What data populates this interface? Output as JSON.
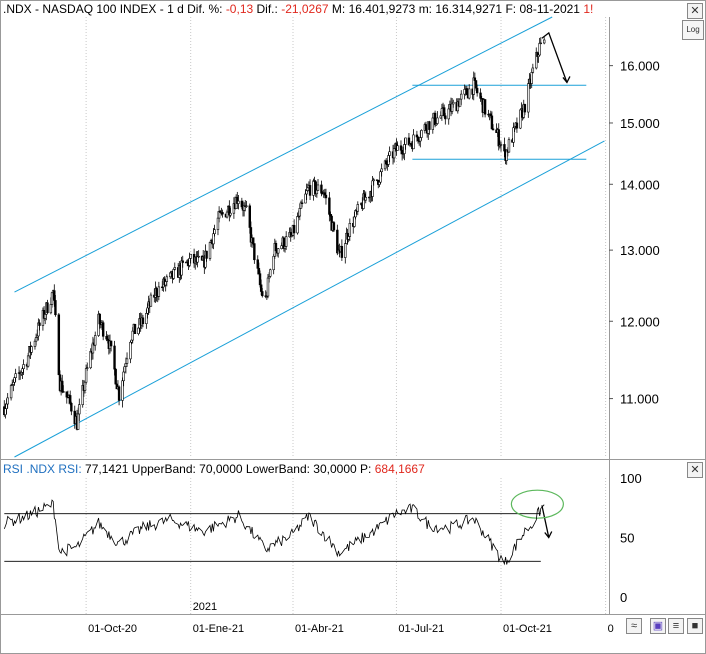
{
  "header": {
    "symbol": ".NDX",
    "sep1": "-",
    "name": "NASDAQ 100 INDEX",
    "sep2": "-",
    "period": "1 d",
    "dif_pct_label": "Dif. %:",
    "dif_pct": "-0,13",
    "dif_label": "Dif.:",
    "dif": "-21,0267",
    "m_label": "M:",
    "m": "16.401,9273",
    "mlow_label": "m:",
    "mlow": "16.314,9271",
    "f_label": "F:",
    "f": "08-11-2021",
    "extra": "1!"
  },
  "log_button": "Log",
  "rsi_header": {
    "name": "RSI",
    "symbol": ".NDX RSI:",
    "value": "77,1421",
    "upper_label": "UpperBand:",
    "upper": "70,0000",
    "lower_label": "LowerBand:",
    "lower": "30,0000",
    "p_label": "P:",
    "p": "684,1667"
  },
  "colors": {
    "channel": "#1aa0d8",
    "price": "#000000",
    "ellipse": "#5cb85c",
    "red": "#e0281e",
    "grid": "#c8c8c8"
  },
  "chart_data": [
    {
      "type": "candlestick",
      "title": ".NDX - NASDAQ 100 INDEX - 1 d",
      "scale": "log",
      "ylim": [
        10300,
        16900
      ],
      "y_ticks": [
        "16.000",
        "15.000",
        "14.000",
        "13.000",
        "12.000",
        "11.000"
      ],
      "y_tick_values": [
        16000,
        15000,
        14000,
        13000,
        12000,
        11000
      ],
      "x_tick_labels": [
        "01-Oct-20",
        "01-Ene-21",
        "01-Abr-21",
        "01-Jul-21",
        "01-Oct-21",
        "0"
      ],
      "year_label": "2021",
      "series": [
        {
          "points": [
            [
              "2020-07-21",
              10900
            ],
            [
              "2020-07-30",
              11200
            ],
            [
              "2020-08-10",
              11500
            ],
            [
              "2020-08-20",
              11900
            ],
            [
              "2020-09-02",
              12400
            ],
            [
              "2020-09-08",
              11200
            ],
            [
              "2020-09-18",
              10900
            ],
            [
              "2020-09-23",
              10700
            ],
            [
              "2020-10-01",
              11300
            ],
            [
              "2020-10-12",
              12000
            ],
            [
              "2020-10-20",
              11800
            ],
            [
              "2020-10-30",
              11050
            ],
            [
              "2020-11-09",
              11800
            ],
            [
              "2020-11-20",
              12000
            ],
            [
              "2020-12-01",
              12400
            ],
            [
              "2020-12-15",
              12600
            ],
            [
              "2020-12-31",
              12850
            ],
            [
              "2021-01-12",
              12800
            ],
            [
              "2021-01-25",
              13450
            ],
            [
              "2021-02-12",
              13800
            ],
            [
              "2021-02-19",
              13550
            ],
            [
              "2021-03-04",
              12400
            ],
            [
              "2021-03-08",
              12300
            ],
            [
              "2021-03-15",
              13000
            ],
            [
              "2021-03-31",
              13200
            ],
            [
              "2021-04-15",
              13950
            ],
            [
              "2021-04-28",
              13900
            ],
            [
              "2021-05-12",
              12900
            ],
            [
              "2021-05-20",
              13300
            ],
            [
              "2021-06-01",
              13700
            ],
            [
              "2021-06-15",
              14100
            ],
            [
              "2021-06-30",
              14550
            ],
            [
              "2021-07-15",
              14700
            ],
            [
              "2021-07-30",
              15000
            ],
            [
              "2021-08-16",
              15200
            ],
            [
              "2021-08-31",
              15500
            ],
            [
              "2021-09-07",
              15650
            ],
            [
              "2021-09-20",
              15100
            ],
            [
              "2021-09-30",
              14700
            ],
            [
              "2021-10-04",
              14450
            ],
            [
              "2021-10-14",
              14900
            ],
            [
              "2021-10-22",
              15300
            ],
            [
              "2021-10-29",
              15900
            ],
            [
              "2021-11-04",
              16350
            ],
            [
              "2021-11-08",
              16400
            ]
          ]
        }
      ],
      "annotations": {
        "channel_upper": [
          [
            "2020-07-30",
            12400
          ],
          [
            "2021-11-15",
            16900
          ]
        ],
        "channel_lower": [
          [
            "2020-07-30",
            10300
          ],
          [
            "2021-12-31",
            14700
          ]
        ],
        "resistance": [
          [
            "2021-07-15",
            15650
          ],
          [
            "2021-12-15",
            15650
          ]
        ],
        "support": [
          [
            "2021-07-15",
            14400
          ],
          [
            "2021-12-15",
            14400
          ]
        ],
        "projection": [
          [
            "2021-11-06",
            16500
          ],
          [
            "2021-11-12",
            16600
          ],
          [
            "2021-11-28",
            15700
          ]
        ]
      }
    },
    {
      "type": "line",
      "title": "RSI .NDX RSI",
      "ylim": [
        0,
        100
      ],
      "y_ticks": [
        "100",
        "50",
        "0"
      ],
      "y_tick_values": [
        100,
        50,
        0
      ],
      "bands": [
        70,
        30
      ],
      "series": [
        {
          "points": [
            [
              "2020-07-21",
              62
            ],
            [
              "2020-08-10",
              68
            ],
            [
              "2020-09-02",
              78
            ],
            [
              "2020-09-08",
              38
            ],
            [
              "2020-09-23",
              42
            ],
            [
              "2020-10-12",
              62
            ],
            [
              "2020-10-30",
              45
            ],
            [
              "2020-11-20",
              58
            ],
            [
              "2020-12-15",
              65
            ],
            [
              "2021-01-12",
              55
            ],
            [
              "2021-02-12",
              68
            ],
            [
              "2021-03-08",
              40
            ],
            [
              "2021-03-31",
              52
            ],
            [
              "2021-04-15",
              68
            ],
            [
              "2021-05-12",
              37
            ],
            [
              "2021-06-15",
              58
            ],
            [
              "2021-06-30",
              70
            ],
            [
              "2021-07-15",
              74
            ],
            [
              "2021-07-30",
              60
            ],
            [
              "2021-08-16",
              58
            ],
            [
              "2021-09-07",
              66
            ],
            [
              "2021-09-20",
              48
            ],
            [
              "2021-10-04",
              28
            ],
            [
              "2021-10-22",
              55
            ],
            [
              "2021-10-29",
              62
            ],
            [
              "2021-11-04",
              72
            ],
            [
              "2021-11-08",
              77
            ]
          ]
        }
      ],
      "annotations": {
        "upper_line": [
          [
            "2020-07-21",
            70
          ],
          [
            "2021-11-05",
            70
          ]
        ],
        "lower_line": [
          [
            "2020-07-21",
            30
          ],
          [
            "2021-11-05",
            30
          ]
        ],
        "arrow": [
          [
            "2021-11-06",
            77
          ],
          [
            "2021-11-12",
            50
          ]
        ]
      }
    }
  ]
}
